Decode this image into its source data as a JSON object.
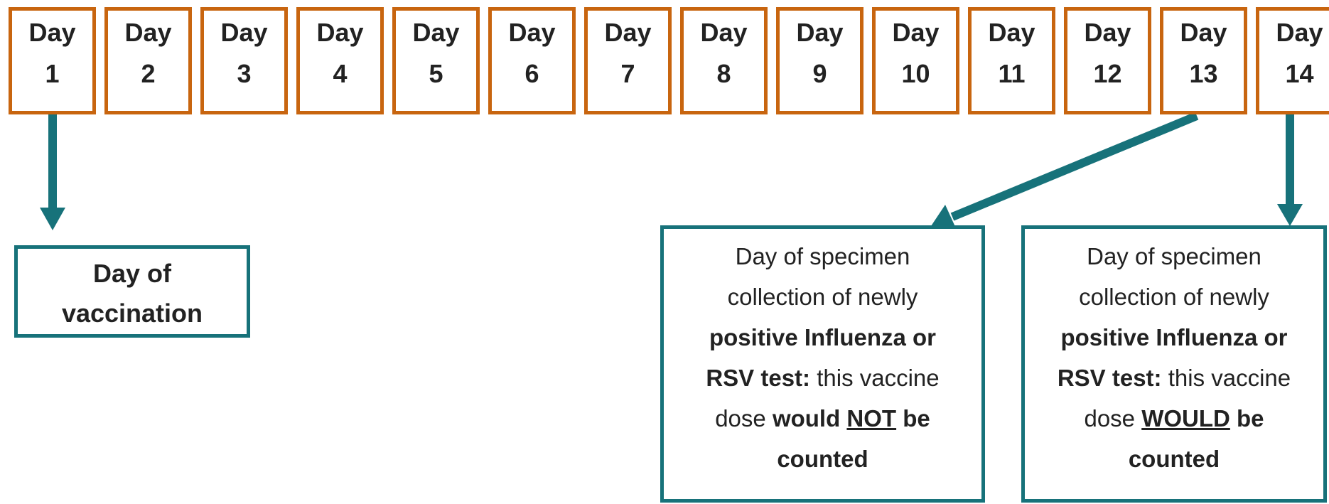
{
  "days": [
    {
      "word": "Day",
      "number": 1
    },
    {
      "word": "Day",
      "number": 2
    },
    {
      "word": "Day",
      "number": 3
    },
    {
      "word": "Day",
      "number": 4
    },
    {
      "word": "Day",
      "number": 5
    },
    {
      "word": "Day",
      "number": 6
    },
    {
      "word": "Day",
      "number": 7
    },
    {
      "word": "Day",
      "number": 8
    },
    {
      "word": "Day",
      "number": 9
    },
    {
      "word": "Day",
      "number": 10
    },
    {
      "word": "Day",
      "number": 11
    },
    {
      "word": "Day",
      "number": 12
    },
    {
      "word": "Day",
      "number": 13
    },
    {
      "word": "Day",
      "number": 14
    }
  ],
  "vaccination": {
    "lines": [
      "Day of",
      "vaccination"
    ]
  },
  "notes": [
    {
      "segments": [
        "Day of specimen",
        "collection of newly",
        "positive Influenza or",
        "RSV test:",
        "this vaccine",
        "dose",
        "would",
        "NOT",
        "be",
        "counted"
      ]
    },
    {
      "segments": [
        "Day of specimen",
        "collection of newly",
        "positive Influenza or",
        "RSV test:",
        "this vaccine",
        "dose",
        "WOULD",
        "be",
        "counted"
      ]
    }
  ]
}
